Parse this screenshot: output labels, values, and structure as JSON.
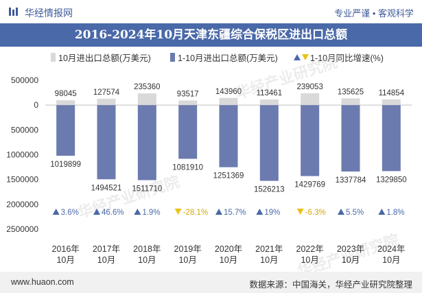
{
  "header": {
    "brand": "华经情报网",
    "tagline": "专业严谨 • 客观科学"
  },
  "chart_data": {
    "type": "bar",
    "title": "2016-2024年10月天津东疆综合保税区进出口总额",
    "categories": [
      "2016年\n10月",
      "2017年\n10月",
      "2018年\n10月",
      "2019年\n10月",
      "2020年\n10月",
      "2021年\n10月",
      "2022年\n10月",
      "2023年\n10月",
      "2024年\n10月"
    ],
    "series": [
      {
        "name": "10月进出口总额(万美元)",
        "color": "#d9d9d9",
        "values": [
          98045,
          127574,
          235360,
          93517,
          143960,
          113461,
          239053,
          135625,
          114854
        ]
      },
      {
        "name": "1-10月进出口总额(万美元)",
        "color": "#6b7bb0",
        "values": [
          1019899,
          1494521,
          1511710,
          1081910,
          1251369,
          1526213,
          1429769,
          1337784,
          1329850
        ]
      },
      {
        "name": "1-10月同比增速(%)",
        "values": [
          3.6,
          46.6,
          1.9,
          -28.1,
          15.7,
          19,
          -6.3,
          5.5,
          1.8
        ],
        "labels": [
          "3.6%",
          "46.6%",
          "1.9%",
          "-28.1%",
          "15.7%",
          "19%",
          "-6.3%",
          "5.5%",
          "1.8%"
        ],
        "up_color": "#4a69a8",
        "down_color": "#e8c31a"
      }
    ],
    "ytick_labels": [
      "500000",
      "0",
      "500000",
      "1000000",
      "1500000",
      "2000000",
      "2500000"
    ],
    "ytick_values": [
      500000,
      0,
      -500000,
      -1000000,
      -1500000,
      -2000000,
      -2500000
    ],
    "ylim": [
      -2500000,
      500000
    ],
    "grid": false,
    "legend_position": "top"
  },
  "footer": {
    "url": "www.huaon.com",
    "source": "数据来源：中国海关，华经产业研究院整理"
  },
  "watermark": "华经产业研究院"
}
